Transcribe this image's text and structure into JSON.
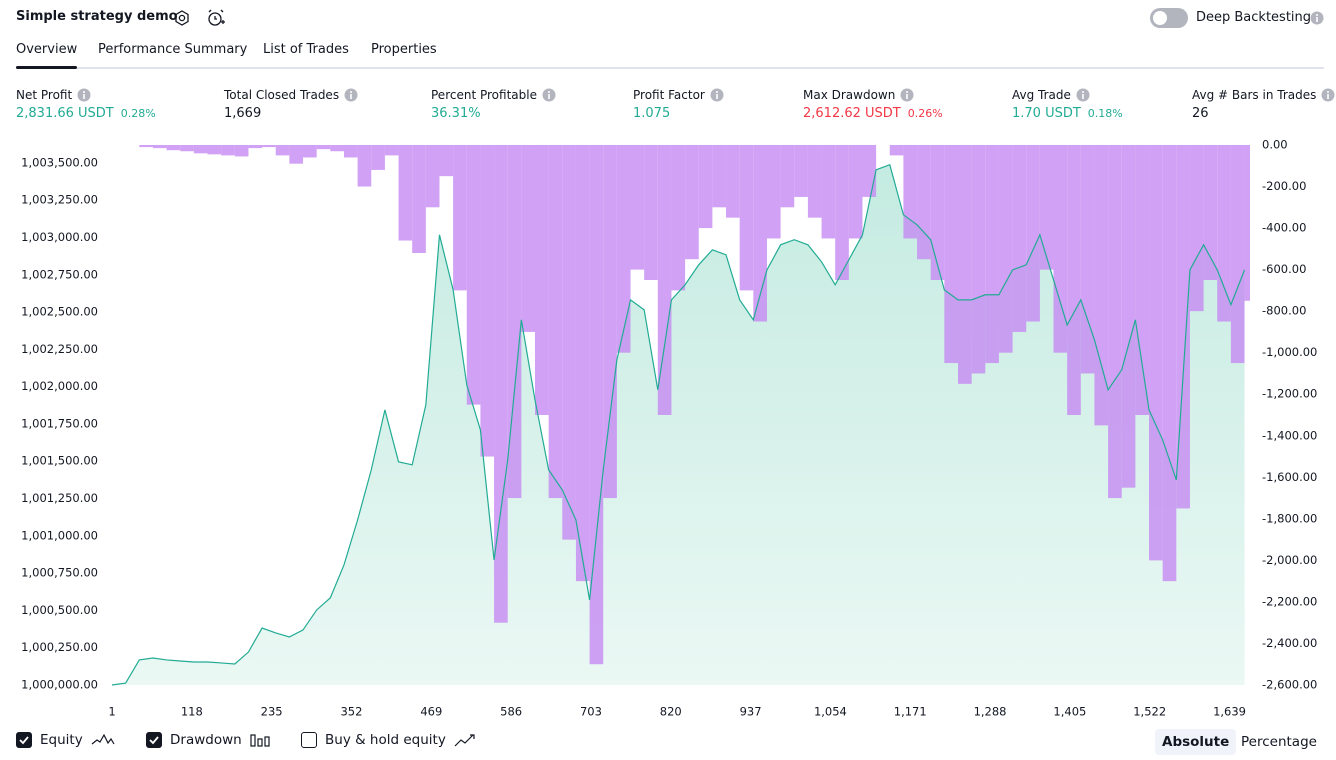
{
  "header": {
    "title": "Simple strategy demo",
    "deep_backtesting": {
      "label": "Deep Backtesting",
      "enabled": false
    }
  },
  "tabs": {
    "items": [
      "Overview",
      "Performance Summary",
      "List of Trades",
      "Properties"
    ],
    "active": 0
  },
  "metrics": [
    {
      "label": "Net Profit",
      "value": "2,831.66 USDT",
      "pct": "0.28%"
    },
    {
      "label": "Total Closed Trades",
      "value": "1,669"
    },
    {
      "label": "Percent Profitable",
      "value": "36.31%"
    },
    {
      "label": "Profit Factor",
      "value": "1.075"
    },
    {
      "label": "Max Drawdown",
      "value": "2,612.62 USDT",
      "pct": "0.26%"
    },
    {
      "label": "Avg Trade",
      "value": "1.70 USDT",
      "pct": "0.18%"
    },
    {
      "label": "Avg # Bars in Trades",
      "value": "26"
    }
  ],
  "chart_data": {
    "type": "combo",
    "x": [
      1,
      21,
      41,
      61,
      81,
      101,
      121,
      141,
      161,
      181,
      201,
      221,
      241,
      261,
      281,
      301,
      321,
      341,
      361,
      381,
      401,
      421,
      441,
      461,
      481,
      501,
      521,
      541,
      561,
      581,
      601,
      621,
      641,
      661,
      681,
      701,
      721,
      741,
      761,
      781,
      801,
      821,
      841,
      861,
      881,
      901,
      921,
      941,
      961,
      981,
      1001,
      1021,
      1041,
      1061,
      1081,
      1101,
      1121,
      1141,
      1161,
      1181,
      1201,
      1221,
      1241,
      1261,
      1281,
      1301,
      1321,
      1341,
      1361,
      1381,
      1401,
      1421,
      1441,
      1461,
      1481,
      1501,
      1521,
      1541,
      1561,
      1581,
      1601,
      1621,
      1641,
      1661
    ],
    "xlim": [
      1,
      1669
    ],
    "xticks": [
      1,
      118,
      235,
      352,
      469,
      586,
      703,
      820,
      937,
      {
        "value": 1054,
        "label": "1,054"
      },
      {
        "value": 1171,
        "label": "1,171"
      },
      {
        "value": 1288,
        "label": "1,288"
      },
      {
        "value": 1405,
        "label": "1,405"
      },
      {
        "value": 1522,
        "label": "1,522"
      },
      {
        "value": 1639,
        "label": "1,639"
      }
    ],
    "ylim": [
      1000000,
      1003620
    ],
    "yticks": [
      {
        "value": 1000000,
        "label": "1,000,000.00"
      },
      {
        "value": 1000250,
        "label": "1,000,250.00"
      },
      {
        "value": 1000500,
        "label": "1,000,500.00"
      },
      {
        "value": 1000750,
        "label": "1,000,750.00"
      },
      {
        "value": 1001000,
        "label": "1,001,000.00"
      },
      {
        "value": 1001250,
        "label": "1,001,250.00"
      },
      {
        "value": 1001500,
        "label": "1,001,500.00"
      },
      {
        "value": 1001750,
        "label": "1,001,750.00"
      },
      {
        "value": 1002000,
        "label": "1,002,000.00"
      },
      {
        "value": 1002250,
        "label": "1,002,250.00"
      },
      {
        "value": 1002500,
        "label": "1,002,500.00"
      },
      {
        "value": 1002750,
        "label": "1,002,750.00"
      },
      {
        "value": 1003000,
        "label": "1,003,000.00"
      },
      {
        "value": 1003250,
        "label": "1,003,250.00"
      },
      {
        "value": 1003500,
        "label": "1,003,500.00"
      }
    ],
    "y2lim": [
      -2600,
      0
    ],
    "y2ticks": [
      {
        "value": 0,
        "label": "0.00"
      },
      {
        "value": -200,
        "label": "-200.00"
      },
      {
        "value": -400,
        "label": "-400.00"
      },
      {
        "value": -600,
        "label": "-600.00"
      },
      {
        "value": -800,
        "label": "-800.00"
      },
      {
        "value": -1000,
        "label": "-1,000.00"
      },
      {
        "value": -1200,
        "label": "-1,200.00"
      },
      {
        "value": -1400,
        "label": "-1,400.00"
      },
      {
        "value": -1600,
        "label": "-1,600.00"
      },
      {
        "value": -1800,
        "label": "-1,800.00"
      },
      {
        "value": -2000,
        "label": "-2,000.00"
      },
      {
        "value": -2200,
        "label": "-2,200.00"
      },
      {
        "value": -2400,
        "label": "-2,400.00"
      },
      {
        "value": -2600,
        "label": "-2,600.00"
      }
    ],
    "series": [
      {
        "name": "Equity",
        "type": "area",
        "color": "#22ab94",
        "visible": true,
        "values": [
          1000000,
          1000013,
          1000168,
          1000181,
          1000168,
          1000161,
          1000154,
          1000154,
          1000148,
          1000141,
          1000221,
          1000382,
          1000349,
          1000322,
          1000369,
          1000503,
          1000584,
          1000805,
          1001107,
          1001442,
          1001844,
          1001496,
          1001476,
          1001878,
          1003018,
          1002649,
          1002012,
          1001710,
          1000838,
          1001509,
          1002448,
          1001911,
          1001442,
          1001308,
          1001107,
          1000570,
          1001442,
          1002180,
          1002582,
          1002515,
          1001979,
          1002582,
          1002683,
          1002817,
          1002917,
          1002884,
          1002582,
          1002448,
          1002783,
          1002951,
          1002985,
          1002951,
          1002837,
          1002683,
          1002850,
          1003018,
          1003454,
          1003488,
          1003152,
          1003085,
          1002985,
          1002649,
          1002582,
          1002582,
          1002616,
          1002616,
          1002783,
          1002817,
          1003018,
          1002716,
          1002414,
          1002582,
          1002314,
          1001979,
          1002113,
          1002448,
          1001844,
          1001643,
          1001375,
          1002783,
          1002951,
          1002783,
          1002549,
          1002783
        ]
      },
      {
        "name": "Drawdown",
        "type": "bar",
        "axis": "y2",
        "color": "#c58af3",
        "visible": true,
        "values": [
          0,
          0,
          -10,
          -15,
          -25,
          -30,
          -40,
          -45,
          -50,
          -55,
          -15,
          -10,
          -50,
          -90,
          -60,
          -20,
          -30,
          -60,
          -200,
          -120,
          -50,
          -460,
          -520,
          -300,
          -150,
          -700,
          -1250,
          -1500,
          -2300,
          -1700,
          -900,
          -1300,
          -1700,
          -1900,
          -2100,
          -2500,
          -1700,
          -1000,
          -600,
          -650,
          -1300,
          -700,
          -550,
          -400,
          -300,
          -350,
          -700,
          -850,
          -450,
          -300,
          -250,
          -350,
          -450,
          -650,
          -450,
          -250,
          0,
          -50,
          -450,
          -550,
          -650,
          -1050,
          -1150,
          -1100,
          -1050,
          -1000,
          -900,
          -850,
          -600,
          -1000,
          -1300,
          -1100,
          -1350,
          -1700,
          -1650,
          -1300,
          -2000,
          -2100,
          -1750,
          -800,
          -650,
          -850,
          -1050,
          -750
        ]
      }
    ]
  },
  "footer": {
    "toggles": [
      {
        "label": "Buy & hold equity",
        "checked": false
      }
    ],
    "modes": [
      "Absolute",
      "Percentage"
    ],
    "active_mode": 0
  }
}
